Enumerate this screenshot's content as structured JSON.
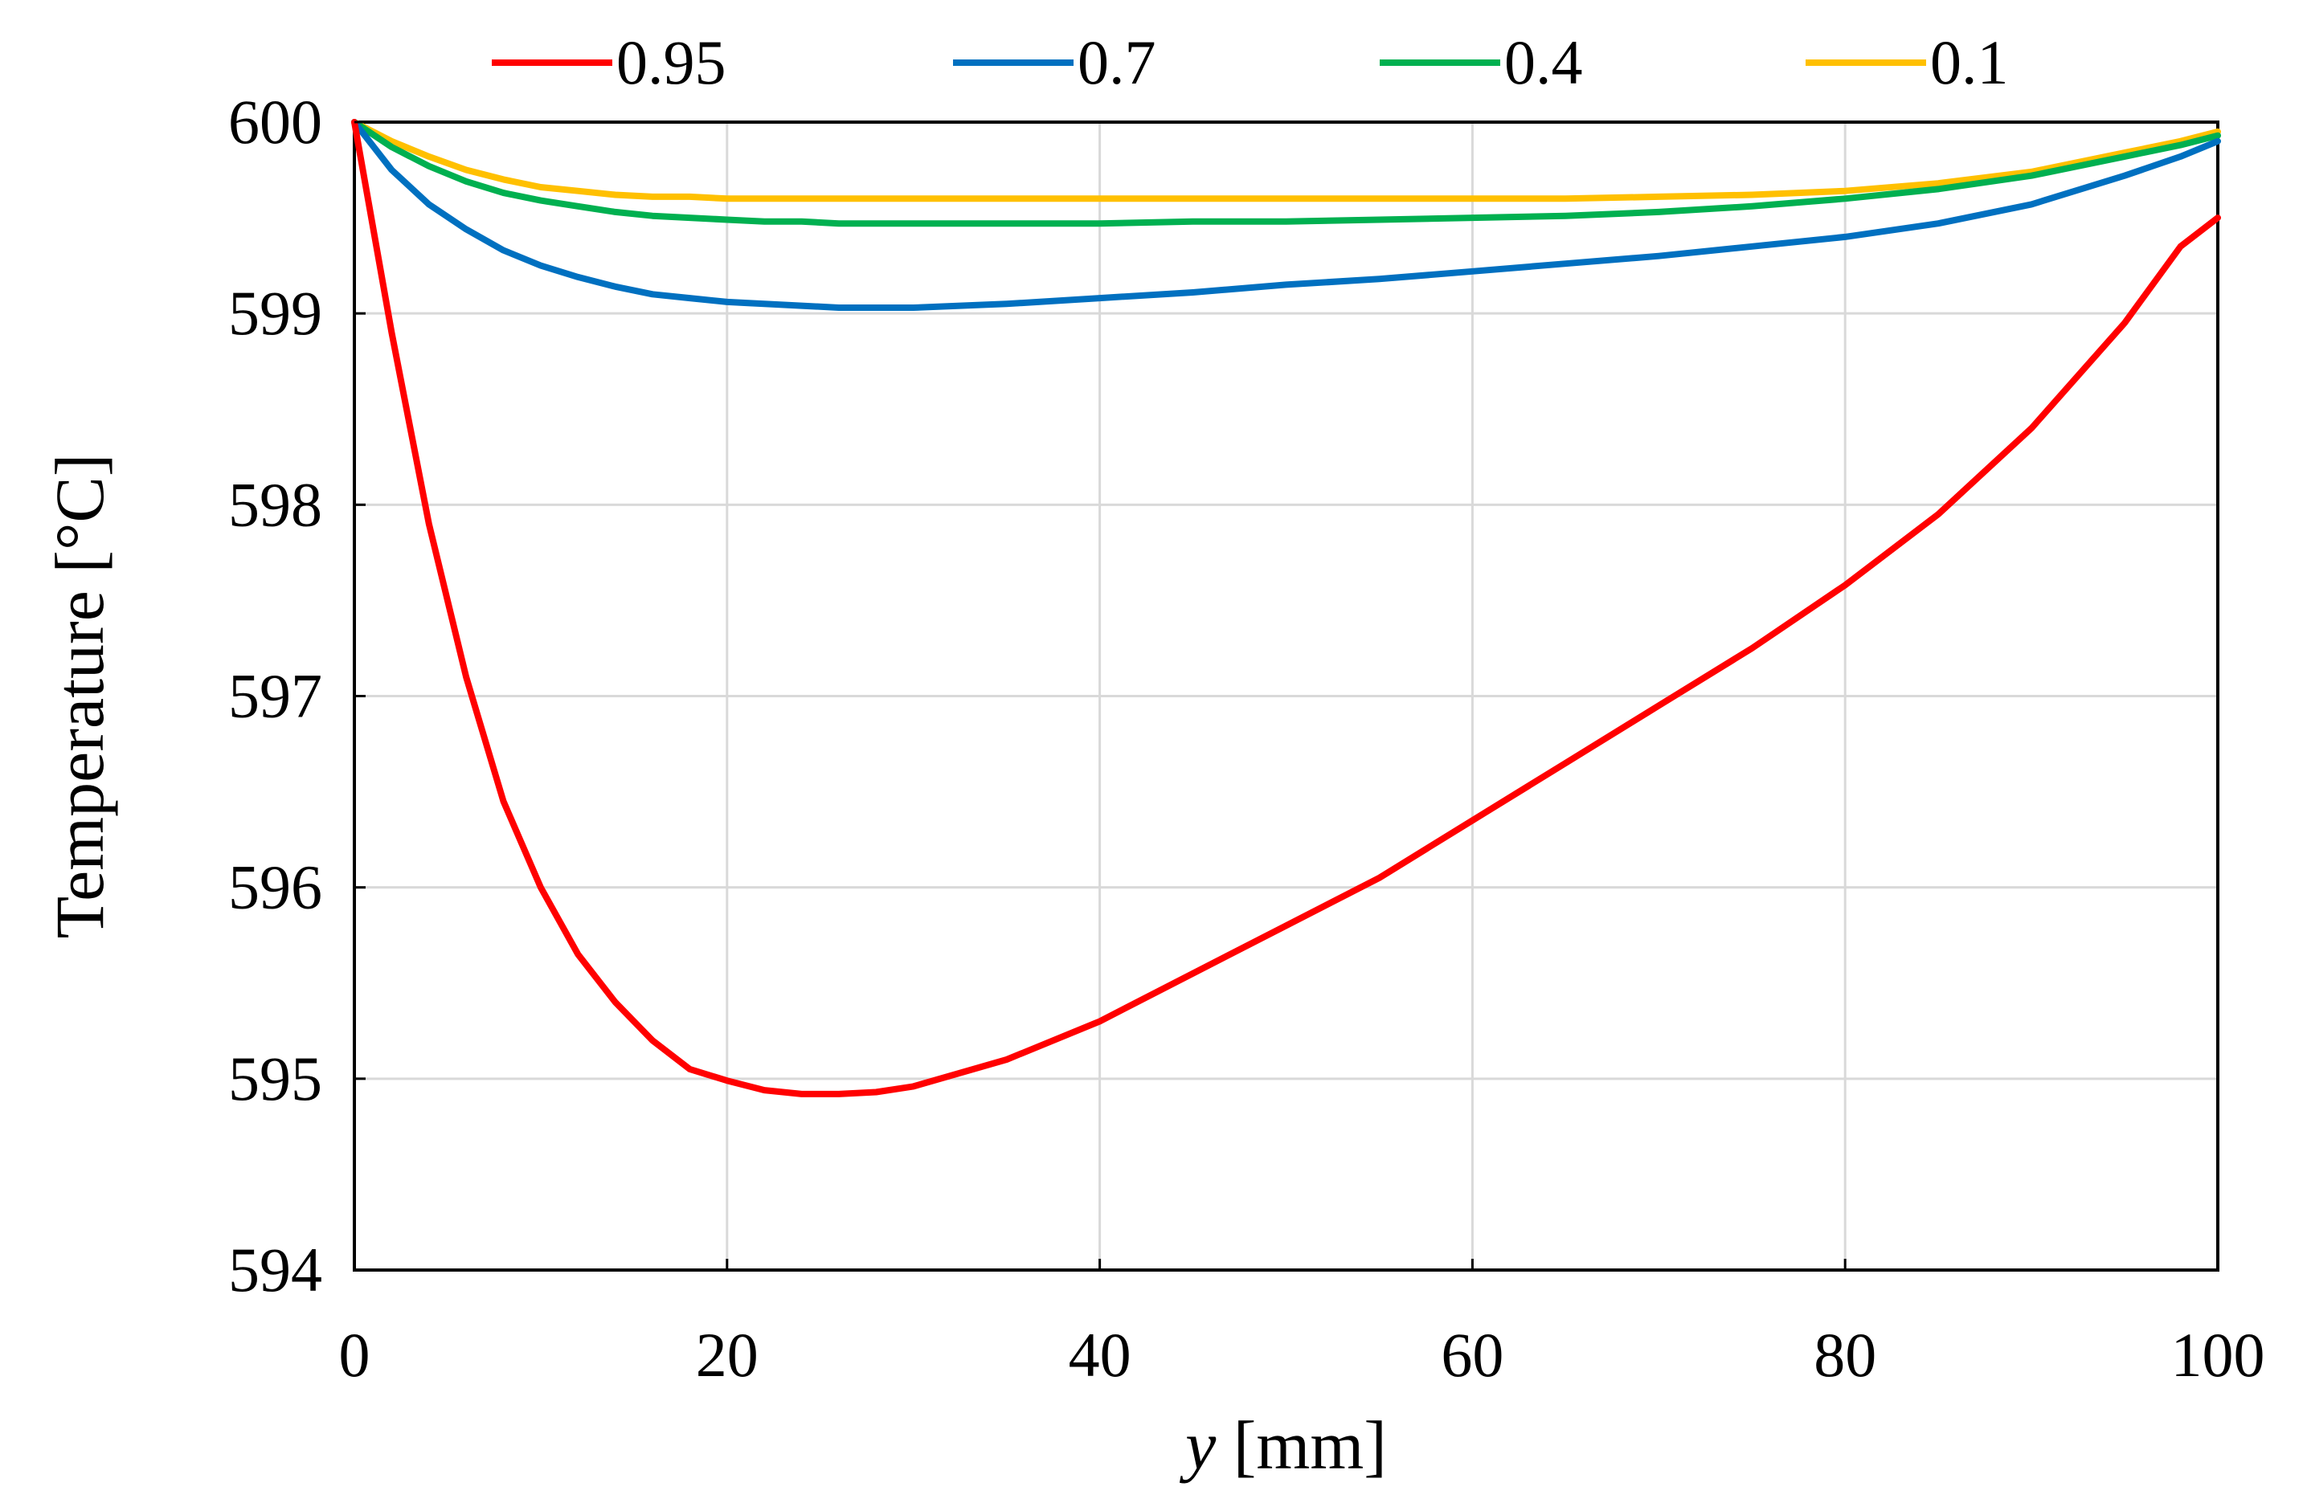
{
  "chart_data": {
    "type": "line",
    "title": "",
    "xlabel_var": "y",
    "xlabel_unit": " [mm]",
    "ylabel": "Temperature [°C]",
    "xlim": [
      0,
      100
    ],
    "ylim": [
      594,
      600
    ],
    "xticks": [
      "0",
      "20",
      "40",
      "60",
      "80",
      "100"
    ],
    "yticks": [
      "594",
      "595",
      "596",
      "597",
      "598",
      "599",
      "600"
    ],
    "grid": true,
    "legend_position": "top",
    "x": [
      0,
      2,
      4,
      6,
      8,
      10,
      12,
      14,
      16,
      18,
      20,
      22,
      24,
      26,
      28,
      30,
      35,
      40,
      45,
      50,
      55,
      60,
      65,
      70,
      75,
      80,
      85,
      90,
      95,
      98,
      100
    ],
    "series": [
      {
        "name": "0.95",
        "color": "#ff0000",
        "values": [
          600.0,
          598.9,
          597.9,
          597.1,
          596.45,
          596.0,
          595.65,
          595.4,
          595.2,
          595.05,
          594.99,
          594.94,
          594.92,
          594.92,
          594.93,
          594.96,
          595.1,
          595.3,
          595.55,
          595.8,
          596.05,
          596.35,
          596.65,
          596.95,
          597.25,
          597.58,
          597.95,
          598.4,
          598.95,
          599.35,
          599.5
        ]
      },
      {
        "name": "0.7",
        "color": "#0070c0",
        "values": [
          600.0,
          599.75,
          599.57,
          599.44,
          599.33,
          599.25,
          599.19,
          599.14,
          599.1,
          599.08,
          599.06,
          599.05,
          599.04,
          599.03,
          599.03,
          599.03,
          599.05,
          599.08,
          599.11,
          599.15,
          599.18,
          599.22,
          599.26,
          599.3,
          599.35,
          599.4,
          599.47,
          599.57,
          599.72,
          599.82,
          599.9
        ]
      },
      {
        "name": "0.4",
        "color": "#00b050",
        "values": [
          600.0,
          599.87,
          599.77,
          599.69,
          599.63,
          599.59,
          599.56,
          599.53,
          599.51,
          599.5,
          599.49,
          599.48,
          599.48,
          599.47,
          599.47,
          599.47,
          599.47,
          599.47,
          599.48,
          599.48,
          599.49,
          599.5,
          599.51,
          599.53,
          599.56,
          599.6,
          599.65,
          599.72,
          599.82,
          599.88,
          599.93
        ]
      },
      {
        "name": "0.1",
        "color": "#ffc000",
        "values": [
          600.0,
          599.9,
          599.82,
          599.75,
          599.7,
          599.66,
          599.64,
          599.62,
          599.61,
          599.61,
          599.6,
          599.6,
          599.6,
          599.6,
          599.6,
          599.6,
          599.6,
          599.6,
          599.6,
          599.6,
          599.6,
          599.6,
          599.6,
          599.61,
          599.62,
          599.64,
          599.68,
          599.74,
          599.84,
          599.9,
          599.95
        ]
      }
    ]
  }
}
